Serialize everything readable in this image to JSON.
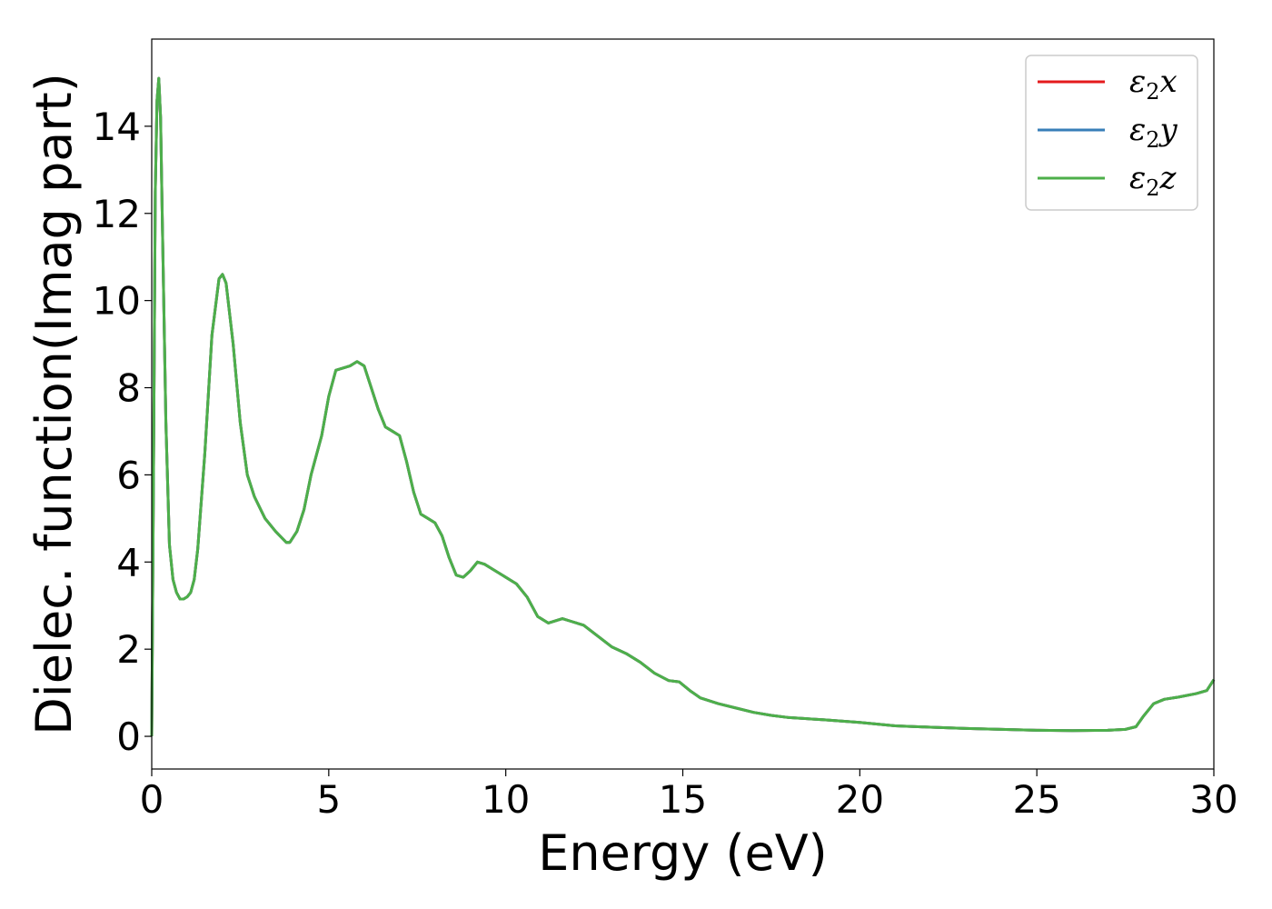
{
  "chart_data": {
    "type": "line",
    "title": "",
    "xlabel": "Energy (eV)",
    "ylabel": "Dielec. function(Imag part)",
    "xlim": [
      0,
      30
    ],
    "ylim": [
      -0.75,
      16
    ],
    "xticks": [
      0,
      5,
      10,
      15,
      20,
      25,
      30
    ],
    "yticks": [
      0,
      2,
      4,
      6,
      8,
      10,
      12,
      14
    ],
    "grid": false,
    "legend_position": "top-right",
    "x": [
      0,
      0.05,
      0.1,
      0.15,
      0.2,
      0.25,
      0.3,
      0.4,
      0.5,
      0.6,
      0.7,
      0.8,
      0.9,
      1.0,
      1.1,
      1.2,
      1.3,
      1.5,
      1.7,
      1.9,
      2.0,
      2.1,
      2.3,
      2.5,
      2.7,
      2.9,
      3.2,
      3.5,
      3.8,
      3.9,
      4.1,
      4.3,
      4.5,
      4.8,
      5.0,
      5.2,
      5.4,
      5.6,
      5.8,
      6.0,
      6.2,
      6.4,
      6.6,
      6.8,
      7.0,
      7.2,
      7.4,
      7.6,
      7.8,
      8.0,
      8.2,
      8.4,
      8.6,
      8.8,
      9.0,
      9.2,
      9.4,
      9.6,
      9.8,
      10.0,
      10.3,
      10.6,
      10.9,
      11.2,
      11.6,
      11.8,
      12.2,
      12.6,
      13.0,
      13.4,
      13.8,
      14.2,
      14.6,
      14.9,
      15.2,
      15.5,
      16.0,
      16.5,
      17.0,
      17.5,
      18.0,
      19.0,
      20.0,
      20.5,
      21.0,
      22.0,
      23.0,
      24.0,
      25.0,
      26.0,
      27.0,
      27.5,
      27.8,
      28.0,
      28.3,
      28.6,
      29.0,
      29.5,
      29.8,
      30.0
    ],
    "series": [
      {
        "name": "x",
        "color": "#e41a1c",
        "values": [
          0.0,
          6.0,
          12.5,
          14.6,
          15.1,
          14.2,
          11.8,
          7.2,
          4.4,
          3.6,
          3.3,
          3.15,
          3.15,
          3.2,
          3.3,
          3.6,
          4.3,
          6.5,
          9.2,
          10.5,
          10.6,
          10.4,
          9.0,
          7.2,
          6.0,
          5.5,
          5.0,
          4.7,
          4.45,
          4.45,
          4.7,
          5.2,
          6.0,
          6.9,
          7.8,
          8.4,
          8.45,
          8.5,
          8.6,
          8.5,
          8.0,
          7.5,
          7.1,
          7.0,
          6.9,
          6.3,
          5.6,
          5.1,
          5.0,
          4.9,
          4.6,
          4.1,
          3.7,
          3.65,
          3.8,
          4.0,
          3.95,
          3.85,
          3.75,
          3.65,
          3.5,
          3.2,
          2.75,
          2.6,
          2.7,
          2.65,
          2.55,
          2.3,
          2.05,
          1.9,
          1.7,
          1.45,
          1.28,
          1.25,
          1.05,
          0.88,
          0.75,
          0.65,
          0.55,
          0.48,
          0.43,
          0.38,
          0.32,
          0.28,
          0.24,
          0.21,
          0.18,
          0.16,
          0.14,
          0.13,
          0.14,
          0.16,
          0.22,
          0.45,
          0.75,
          0.85,
          0.9,
          0.98,
          1.05,
          1.3
        ]
      },
      {
        "name": "y",
        "color": "#377eb8",
        "values": [
          0.0,
          6.0,
          12.5,
          14.6,
          15.1,
          14.2,
          11.8,
          7.2,
          4.4,
          3.6,
          3.3,
          3.15,
          3.15,
          3.2,
          3.3,
          3.6,
          4.3,
          6.5,
          9.2,
          10.5,
          10.6,
          10.4,
          9.0,
          7.2,
          6.0,
          5.5,
          5.0,
          4.7,
          4.45,
          4.45,
          4.7,
          5.2,
          6.0,
          6.9,
          7.8,
          8.4,
          8.45,
          8.5,
          8.6,
          8.5,
          8.0,
          7.5,
          7.1,
          7.0,
          6.9,
          6.3,
          5.6,
          5.1,
          5.0,
          4.9,
          4.6,
          4.1,
          3.7,
          3.65,
          3.8,
          4.0,
          3.95,
          3.85,
          3.75,
          3.65,
          3.5,
          3.2,
          2.75,
          2.6,
          2.7,
          2.65,
          2.55,
          2.3,
          2.05,
          1.9,
          1.7,
          1.45,
          1.28,
          1.25,
          1.05,
          0.88,
          0.75,
          0.65,
          0.55,
          0.48,
          0.43,
          0.38,
          0.32,
          0.28,
          0.24,
          0.21,
          0.18,
          0.16,
          0.14,
          0.13,
          0.14,
          0.16,
          0.22,
          0.45,
          0.75,
          0.85,
          0.9,
          0.98,
          1.05,
          1.3
        ]
      },
      {
        "name": "z",
        "color": "#4daf4a",
        "values": [
          0.0,
          6.0,
          12.5,
          14.6,
          15.1,
          14.2,
          11.8,
          7.2,
          4.4,
          3.6,
          3.3,
          3.15,
          3.15,
          3.2,
          3.3,
          3.6,
          4.3,
          6.5,
          9.2,
          10.5,
          10.6,
          10.4,
          9.0,
          7.2,
          6.0,
          5.5,
          5.0,
          4.7,
          4.45,
          4.45,
          4.7,
          5.2,
          6.0,
          6.9,
          7.8,
          8.4,
          8.45,
          8.5,
          8.6,
          8.5,
          8.0,
          7.5,
          7.1,
          7.0,
          6.9,
          6.3,
          5.6,
          5.1,
          5.0,
          4.9,
          4.6,
          4.1,
          3.7,
          3.65,
          3.8,
          4.0,
          3.95,
          3.85,
          3.75,
          3.65,
          3.5,
          3.2,
          2.75,
          2.6,
          2.7,
          2.65,
          2.55,
          2.3,
          2.05,
          1.9,
          1.7,
          1.45,
          1.28,
          1.25,
          1.05,
          0.88,
          0.75,
          0.65,
          0.55,
          0.48,
          0.43,
          0.38,
          0.32,
          0.28,
          0.24,
          0.21,
          0.18,
          0.16,
          0.14,
          0.13,
          0.14,
          0.16,
          0.22,
          0.45,
          0.75,
          0.85,
          0.9,
          0.98,
          1.05,
          1.3
        ]
      }
    ],
    "legend": {
      "symbol": "ε",
      "subscript": "2",
      "entries": [
        "x",
        "y",
        "z"
      ]
    }
  }
}
